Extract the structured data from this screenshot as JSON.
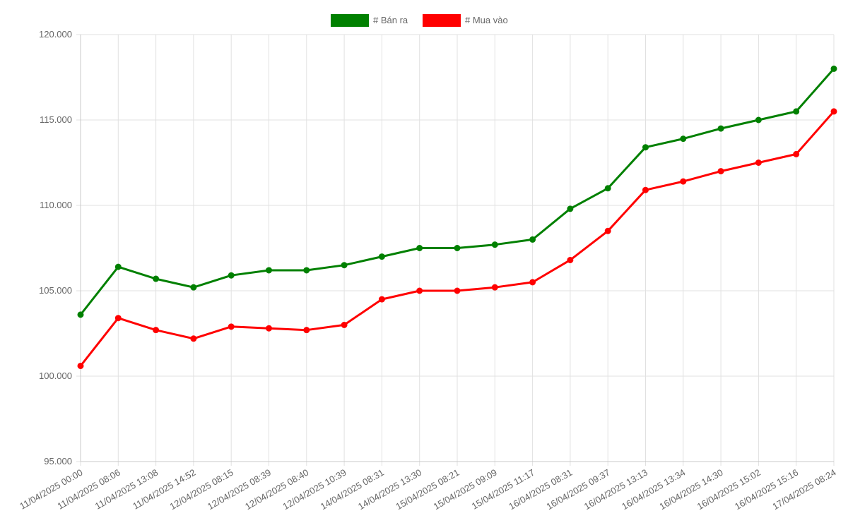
{
  "chart_data": {
    "type": "line",
    "title": "",
    "xlabel": "",
    "ylabel": "",
    "ylim": [
      95000,
      120000
    ],
    "y_ticks": [
      "95.000",
      "100.000",
      "105.000",
      "110.000",
      "115.000",
      "120.000"
    ],
    "y_tick_values": [
      95000,
      100000,
      105000,
      110000,
      115000,
      120000
    ],
    "grid": true,
    "legend_position": "top",
    "categories": [
      "11/04/2025 00:00",
      "11/04/2025 08:06",
      "11/04/2025 13:08",
      "11/04/2025 14:52",
      "12/04/2025 08:15",
      "12/04/2025 08:39",
      "12/04/2025 08:40",
      "12/04/2025 10:39",
      "14/04/2025 08:31",
      "14/04/2025 13:30",
      "15/04/2025 08:21",
      "15/04/2025 09:09",
      "15/04/2025 11:17",
      "16/04/2025 08:31",
      "16/04/2025 09:37",
      "16/04/2025 13:13",
      "16/04/2025 13:34",
      "16/04/2025 14:30",
      "16/04/2025 15:02",
      "16/04/2025 15:16",
      "17/04/2025 08:24"
    ],
    "series": [
      {
        "name": "# Bán ra",
        "color": "#008000",
        "values": [
          103600,
          106400,
          105700,
          105200,
          105900,
          106200,
          106200,
          106500,
          107000,
          107500,
          107500,
          107700,
          108000,
          109800,
          111000,
          113400,
          113900,
          114500,
          115000,
          115500,
          118000
        ]
      },
      {
        "name": "# Mua vào",
        "color": "#ff0000",
        "values": [
          100600,
          103400,
          102700,
          102200,
          102900,
          102800,
          102700,
          103000,
          104500,
          105000,
          105000,
          105200,
          105500,
          106800,
          108500,
          110900,
          111400,
          112000,
          112500,
          113000,
          115500
        ]
      }
    ]
  }
}
